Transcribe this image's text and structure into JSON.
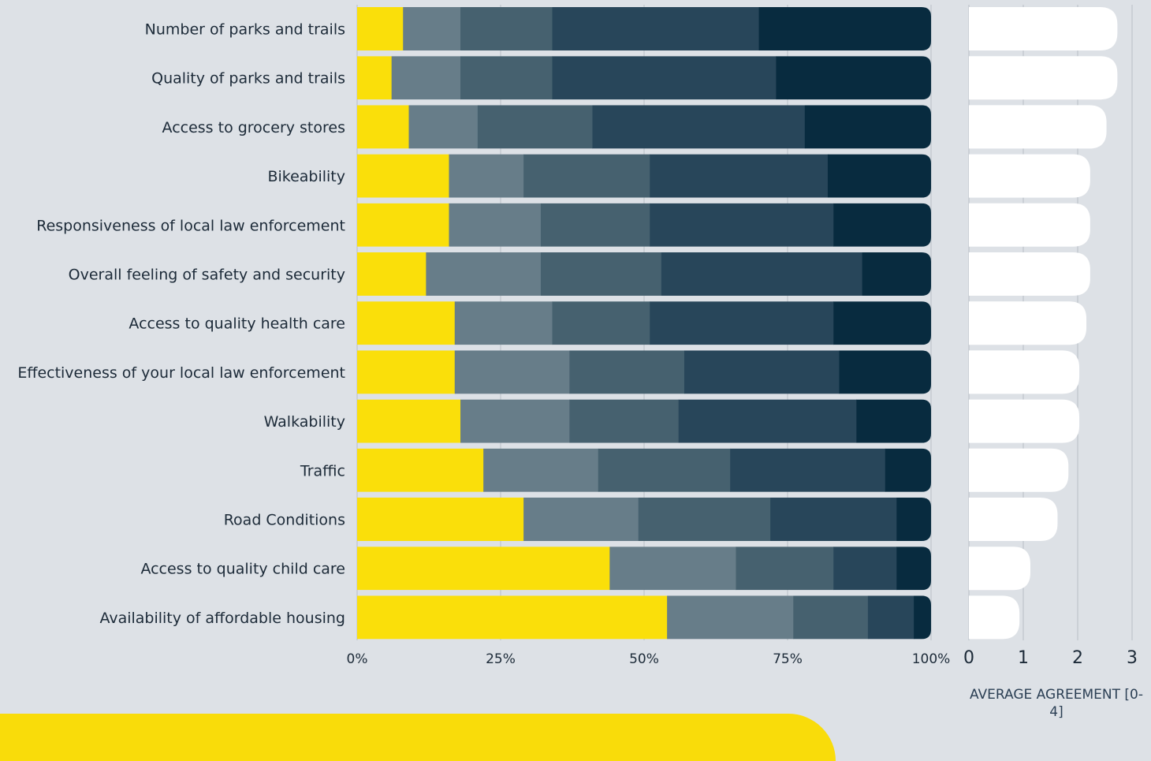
{
  "chart_data": [
    {
      "type": "bar",
      "stacked": true,
      "orientation": "horizontal",
      "title": "",
      "categories": [
        "Number of parks and trails",
        "Quality of parks and trails",
        "Access to grocery stores",
        "Bikeability",
        "Responsiveness of local law enforcement",
        "Overall feeling of safety and security",
        "Access to quality health care",
        "Effectiveness of your local law enforcement",
        "Walkability",
        "Traffic",
        "Road Conditions",
        "Access to quality child care",
        "Availability of affordable housing"
      ],
      "series": [
        {
          "color": "#fadf0a",
          "values": [
            8,
            6,
            9,
            16,
            16,
            12,
            17,
            17,
            18,
            22,
            29,
            44,
            54
          ]
        },
        {
          "color": "#677d89",
          "values": [
            10,
            12,
            12,
            13,
            16,
            20,
            17,
            20,
            19,
            20,
            20,
            22,
            22
          ]
        },
        {
          "color": "#46616f",
          "values": [
            16,
            16,
            20,
            22,
            19,
            21,
            17,
            20,
            19,
            23,
            23,
            17,
            13
          ]
        },
        {
          "color": "#28465a",
          "values": [
            36,
            39,
            37,
            31,
            32,
            35,
            32,
            27,
            31,
            27,
            22,
            11,
            8
          ]
        },
        {
          "color": "#082b3f",
          "values": [
            30,
            27,
            22,
            18,
            17,
            12,
            17,
            16,
            13,
            8,
            6,
            6,
            3
          ]
        }
      ],
      "xlim": [
        0,
        100
      ],
      "xticks": [
        "0%",
        "25%",
        "50%",
        "75%",
        "100%"
      ],
      "grid": true
    },
    {
      "type": "bar",
      "orientation": "horizontal",
      "categories": [
        "Number of parks and trails",
        "Quality of parks and trails",
        "Access to grocery stores",
        "Bikeability",
        "Responsiveness of local law enforcement",
        "Overall feeling of safety and security",
        "Access to quality health care",
        "Effectiveness of your local law enforcement",
        "Walkability",
        "Traffic",
        "Road Conditions",
        "Access to quality child care",
        "Availability of affordable housing"
      ],
      "values": [
        2.73,
        2.73,
        2.53,
        2.23,
        2.23,
        2.23,
        2.16,
        2.03,
        2.03,
        1.83,
        1.63,
        1.13,
        0.93
      ],
      "color": "#ffffff",
      "xlim": [
        0,
        3
      ],
      "xticks": [
        "0",
        "1",
        "2",
        "3"
      ],
      "xlabel": "AVERAGE AGREEMENT [0-4]",
      "grid": true
    }
  ]
}
